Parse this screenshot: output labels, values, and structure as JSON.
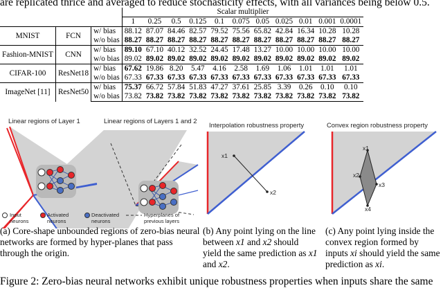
{
  "intro_text": "are replicated thrice and averaged to reduce stochasticity effects, with all variances being below 0.5.",
  "table": {
    "multiplier_header": "Scalar multiplier",
    "multipliers": [
      "1",
      "0.25",
      "0.5",
      "0.125",
      "0.1",
      "0.075",
      "0.05",
      "0.025",
      "0.01",
      "0.001",
      "0.0001"
    ],
    "rows": [
      {
        "dataset": "MNIST",
        "model": "FCN",
        "lines": [
          {
            "bias": "w/ bias",
            "values": [
              "88.12",
              "87.07",
              "84.46",
              "82.57",
              "79.52",
              "75.56",
              "65.82",
              "42.84",
              "16.34",
              "10.28",
              "10.28"
            ]
          },
          {
            "bias": "w/o bias",
            "values": [
              "88.27",
              "88.27",
              "88.27",
              "88.27",
              "88.27",
              "88.27",
              "88.27",
              "88.27",
              "88.27",
              "88.27",
              "88.27"
            ]
          }
        ]
      },
      {
        "dataset": "Fashion-MNIST",
        "model": "CNN",
        "lines": [
          {
            "bias": "w/ bias",
            "values": [
              "89.10",
              "67.10",
              "40.12",
              "32.52",
              "24.45",
              "17.48",
              "13.27",
              "10.00",
              "10.00",
              "10.00",
              "10.00"
            ]
          },
          {
            "bias": "w/o bias",
            "values": [
              "89.02",
              "89.02",
              "89.02",
              "89.02",
              "89.02",
              "89.02",
              "89.02",
              "89.02",
              "89.02",
              "89.02",
              "89.02"
            ]
          }
        ]
      },
      {
        "dataset": "CIFAR-100",
        "model": "ResNet18",
        "lines": [
          {
            "bias": "w/ bias",
            "values": [
              "67.62",
              "19.86",
              "8.20",
              "5.47",
              "4.16",
              "2.58",
              "1.69",
              "1.06",
              "1.01",
              "1.01",
              "1.01"
            ]
          },
          {
            "bias": "w/o bias",
            "values": [
              "67.33",
              "67.33",
              "67.33",
              "67.33",
              "67.33",
              "67.33",
              "67.33",
              "67.33",
              "67.33",
              "67.33",
              "67.33"
            ]
          }
        ]
      },
      {
        "dataset": "ImageNet [11]",
        "model": "ResNet50",
        "lines": [
          {
            "bias": "w/ bias",
            "values": [
              "75.37",
              "66.72",
              "57.84",
              "51.83",
              "47.27",
              "37.61",
              "25.85",
              "3.39",
              "0.26",
              "0.10",
              "0.10"
            ]
          },
          {
            "bias": "w/o bias",
            "values": [
              "73.82",
              "73.82",
              "73.82",
              "73.82",
              "73.82",
              "73.82",
              "73.82",
              "73.82",
              "73.82",
              "73.82",
              "73.82"
            ]
          }
        ]
      }
    ]
  },
  "figures": {
    "a": {
      "title1": "Linear regions of Layer 1",
      "title2": "Linear regions of Layers 1 and 2",
      "legend_input": "Input neurons",
      "legend_activated": "Activated neurons",
      "legend_deactivated": "Deactivated neurons",
      "legend_hyperplanes": "Hyperplanes of previous layers",
      "caption": "(a) Core-shape unbounded regions of zero-bias neural networks are formed by hyper-planes that pass through the origin."
    },
    "b": {
      "title": "Interpolation robustness property",
      "point1": "x1",
      "point2": "x2",
      "caption_pre": "(b) Any point lying on the line between ",
      "caption_x1": "x1",
      "caption_and": " and ",
      "caption_x2": "x2",
      "caption_mid": " should yield the same prediction as ",
      "caption_x1b": "x1",
      "caption_and2": " and ",
      "caption_x2b": "x2",
      "caption_end": "."
    },
    "c": {
      "title": "Convex region robustness property",
      "points": [
        "x1",
        "x2",
        "x3",
        "x4"
      ],
      "caption_pre": "(c) Any point lying inside the convex region formed by inputs ",
      "caption_xi": "xi",
      "caption_mid": " should yield the same prediction as ",
      "caption_xi2": "xi",
      "caption_end": "."
    }
  },
  "bottom_text": "Figure 2: Zero-bias neural networks exhibit unique robustness properties when inputs share the same",
  "colors": {
    "red": "#e8262a",
    "blue": "#3f5fd0",
    "gray": "#d3d3d3",
    "activated": "#e8262a",
    "deactivated": "#4a6fc4"
  }
}
